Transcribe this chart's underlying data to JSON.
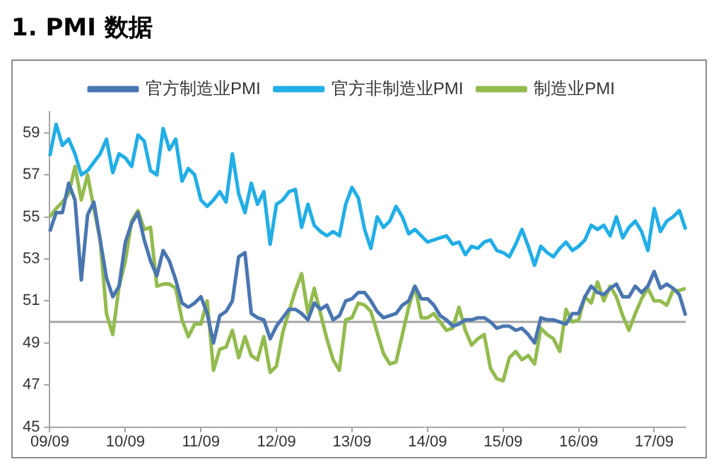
{
  "chart_data": {
    "type": "line",
    "title": "1. PMI 数据",
    "legend": "top",
    "marker": "none",
    "ylim": [
      45,
      60
    ],
    "yticks": [
      45,
      47,
      49,
      51,
      53,
      55,
      57,
      59
    ],
    "ref_lines": [
      {
        "axis": "y",
        "value": 50,
        "color": "#a6a6a6"
      }
    ],
    "categories": [
      "09/09",
      null,
      null,
      null,
      null,
      null,
      null,
      null,
      null,
      null,
      null,
      null,
      "10/09",
      null,
      null,
      null,
      null,
      null,
      null,
      null,
      null,
      null,
      null,
      null,
      "11/09",
      null,
      null,
      null,
      null,
      null,
      null,
      null,
      null,
      null,
      null,
      null,
      "12/09",
      null,
      null,
      null,
      null,
      null,
      null,
      null,
      null,
      null,
      null,
      null,
      "13/09",
      null,
      null,
      null,
      null,
      null,
      null,
      null,
      null,
      null,
      null,
      null,
      "14/09",
      null,
      null,
      null,
      null,
      null,
      null,
      null,
      null,
      null,
      null,
      null,
      "15/09",
      null,
      null,
      null,
      null,
      null,
      null,
      null,
      null,
      null,
      null,
      null,
      "16/09",
      null,
      null,
      null,
      null,
      null,
      null,
      null,
      null,
      null,
      null,
      null,
      "17/09",
      null,
      null,
      null,
      null,
      null
    ],
    "series": [
      {
        "name": "官方制造业PMI",
        "color": "#4a76b0",
        "values": [
          54.3,
          55.2,
          55.2,
          56.6,
          55.8,
          52.0,
          55.1,
          55.7,
          53.9,
          52.1,
          51.2,
          51.7,
          53.8,
          54.7,
          55.2,
          53.9,
          52.9,
          52.2,
          53.4,
          52.9,
          52.0,
          50.9,
          50.7,
          50.9,
          51.2,
          50.4,
          49.0,
          50.3,
          50.5,
          51.0,
          53.1,
          53.3,
          50.4,
          50.2,
          50.1,
          49.2,
          49.8,
          50.2,
          50.6,
          50.6,
          50.4,
          50.1,
          50.9,
          50.6,
          50.8,
          50.1,
          50.3,
          51.0,
          51.1,
          51.4,
          51.4,
          51.0,
          50.5,
          50.2,
          50.3,
          50.4,
          50.8,
          51.0,
          51.7,
          51.1,
          51.1,
          50.8,
          50.3,
          50.1,
          49.8,
          49.9,
          50.1,
          50.1,
          50.2,
          50.2,
          50.0,
          49.7,
          49.8,
          49.8,
          49.6,
          49.7,
          49.4,
          49.0,
          50.2,
          50.1,
          50.1,
          50.0,
          49.9,
          50.4,
          50.4,
          51.2,
          51.7,
          51.4,
          51.3,
          51.6,
          51.8,
          51.2,
          51.2,
          51.7,
          51.4,
          51.7,
          52.4,
          51.6,
          51.8,
          51.6,
          51.3,
          50.3
        ]
      },
      {
        "name": "官方非制造业PMI",
        "color": "#22aee6",
        "values": [
          57.9,
          59.4,
          58.4,
          58.7,
          58.0,
          57.0,
          57.2,
          57.6,
          58.0,
          58.7,
          57.1,
          58.0,
          57.8,
          57.4,
          58.9,
          58.6,
          57.2,
          57.0,
          59.2,
          58.2,
          58.7,
          56.7,
          57.3,
          57.0,
          55.8,
          55.5,
          55.8,
          56.2,
          55.7,
          58.0,
          56.1,
          55.2,
          56.6,
          55.6,
          56.2,
          53.7,
          55.6,
          55.8,
          56.2,
          56.3,
          54.5,
          55.6,
          54.6,
          54.3,
          54.1,
          54.3,
          54.1,
          55.6,
          56.4,
          55.9,
          54.4,
          53.5,
          55.0,
          54.5,
          54.8,
          55.5,
          55.0,
          54.2,
          54.4,
          54.1,
          53.8,
          53.9,
          54.0,
          54.1,
          53.7,
          53.8,
          53.2,
          53.6,
          53.5,
          53.8,
          53.9,
          53.4,
          53.3,
          53.1,
          53.7,
          54.4,
          53.6,
          52.7,
          53.6,
          53.3,
          53.1,
          53.5,
          53.8,
          53.4,
          53.6,
          53.9,
          54.6,
          54.4,
          54.6,
          54.1,
          55.0,
          54.0,
          54.5,
          54.8,
          54.3,
          53.4,
          55.4,
          54.3,
          54.8,
          55.0,
          55.3,
          54.4
        ]
      },
      {
        "name": "制造业PMI",
        "color": "#93bb4f",
        "values": [
          55.0,
          55.4,
          55.7,
          56.1,
          57.4,
          55.8,
          57.0,
          55.4,
          53.9,
          50.4,
          49.4,
          51.7,
          52.9,
          54.8,
          55.3,
          54.4,
          54.5,
          51.7,
          51.8,
          51.8,
          51.6,
          50.1,
          49.3,
          49.9,
          49.9,
          51.0,
          47.7,
          48.7,
          48.8,
          49.6,
          48.3,
          49.3,
          48.4,
          48.2,
          49.3,
          47.6,
          47.9,
          49.5,
          50.5,
          51.5,
          52.3,
          50.4,
          51.6,
          50.4,
          49.2,
          48.2,
          47.7,
          50.1,
          50.2,
          50.9,
          50.8,
          50.5,
          49.5,
          48.5,
          48.0,
          48.1,
          49.4,
          50.7,
          51.7,
          50.2,
          50.2,
          50.4,
          50.0,
          49.6,
          49.7,
          50.7,
          49.6,
          48.9,
          49.2,
          49.4,
          47.8,
          47.3,
          47.2,
          48.3,
          48.6,
          48.2,
          48.4,
          48.0,
          49.7,
          49.4,
          49.2,
          48.6,
          50.6,
          50.0,
          50.1,
          51.2,
          50.9,
          51.9,
          51.0,
          51.7,
          51.2,
          50.3,
          49.6,
          50.4,
          51.1,
          51.6,
          51.0,
          51.0,
          50.8,
          51.5,
          51.5,
          51.6
        ]
      }
    ]
  }
}
